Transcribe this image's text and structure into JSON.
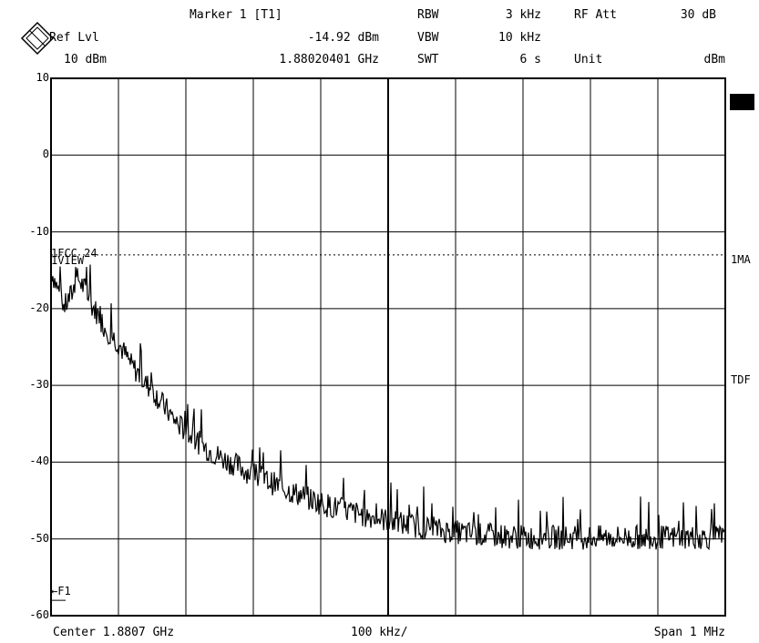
{
  "header": {
    "ref_lvl_label": "Ref Lvl",
    "ref_lvl_value": "10 dBm",
    "marker_label": "Marker 1 [T1]",
    "marker_level": "-14.92 dBm",
    "marker_freq": "1.88020401 GHz",
    "rbw_label": "RBW",
    "rbw_value": "3 kHz",
    "vbw_label": "VBW",
    "vbw_value": "10 kHz",
    "swt_label": "SWT",
    "swt_value": "6 s",
    "rfatt_label": "RF Att",
    "rfatt_value": "30 dB",
    "unit_label": "Unit",
    "unit_value": "dBm"
  },
  "footer": {
    "center": "Center 1.8807 GHz",
    "div": "100 kHz/",
    "span": "Span 1 MHz"
  },
  "annotations": {
    "line_label": "1FCC 24",
    "view_label": "1VIEW",
    "f1_label": "F1"
  },
  "side_labels": {
    "trace_mode": "1MA",
    "tdf": "TDF"
  },
  "colors": {
    "trace": "#000000",
    "grid": "#000000",
    "background": "#ffffff"
  },
  "chart_data": {
    "type": "line",
    "title": "",
    "xlabel": "",
    "ylabel": "",
    "ylim": [
      -60,
      10
    ],
    "yticks": [
      "10",
      "0",
      "-10",
      "-20",
      "-30",
      "-40",
      "-50",
      "-60"
    ],
    "xlim_hz": [
      1880200000,
      1881200000
    ],
    "x_divisions": 10,
    "grid": true,
    "limit_line_dbm": -13,
    "f1_level_dbm": -58,
    "series": [
      {
        "values": [
          -14.9,
          -17.5,
          -19.8,
          -18.2,
          -16,
          -17.5,
          -19.5,
          -20.8,
          -22.5,
          -23.5,
          -24.5,
          -26,
          -27.5,
          -28.5,
          -29.8,
          -30.5,
          -31.8,
          -33,
          -34.2,
          -35.2,
          -36,
          -36.8,
          -37.5,
          -38.2,
          -38.8,
          -39.3,
          -39.8,
          -40.2,
          -40.6,
          -41.2,
          -41.6,
          -42,
          -42.4,
          -42.8,
          -43.2,
          -43.6,
          -44,
          -44.3,
          -44.7,
          -45,
          -45.3,
          -45.6,
          -45.9,
          -46.1,
          -46.4,
          -46.6,
          -46.8,
          -47,
          -47.2,
          -47.4,
          -47.6,
          -47.8,
          -48,
          -48.2,
          -48.3,
          -48.5,
          -48.6,
          -48.8,
          -48.9,
          -49,
          -49.1,
          -49.2,
          -49.3,
          -49.4,
          -49.5,
          -49.5,
          -49.6,
          -49.6,
          -49.7,
          -49.7,
          -49.8,
          -49.8,
          -49.8,
          -49.8,
          -49.8,
          -49.8,
          -49.8,
          -49.8,
          -49.8,
          -49.8,
          -49.8,
          -49.8,
          -49.8,
          -49.8,
          -49.8,
          -49.8,
          -49.8,
          -49.8,
          -49.8,
          -49.8,
          -49.8,
          -49.8,
          -49.8,
          -49.8,
          -49.8,
          -49.8,
          -49.8,
          -49.8,
          -49.8,
          -49.8,
          -49.8
        ]
      }
    ]
  }
}
